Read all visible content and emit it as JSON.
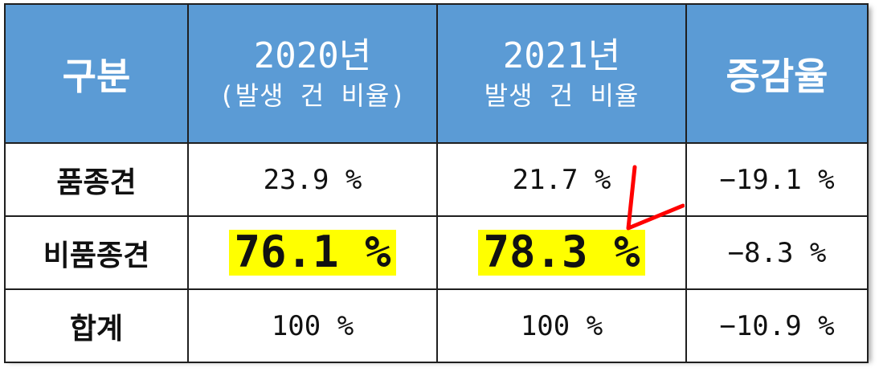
{
  "header": {
    "category": "구분",
    "col2020_year": "2020년",
    "col2020_sub": "(발생 건 비율)",
    "col2021_year": "2021년",
    "col2021_sub": "발생 건 비율",
    "change": "증감율"
  },
  "rows": [
    {
      "label": "품종견",
      "v2020": "23.9 %",
      "v2021": "21.7 %",
      "change": "−19.1 %"
    },
    {
      "label": "비품종견",
      "v2020": "76.1 %",
      "v2021": "78.3 %",
      "change": "−8.3 %"
    },
    {
      "label": "합계",
      "v2020": "100 %",
      "v2021": "100 %",
      "change": "−10.9 %"
    }
  ],
  "colors": {
    "header_bg": "#5b9bd5",
    "highlight": "#ffff00",
    "check_mark": "#ff0000"
  }
}
